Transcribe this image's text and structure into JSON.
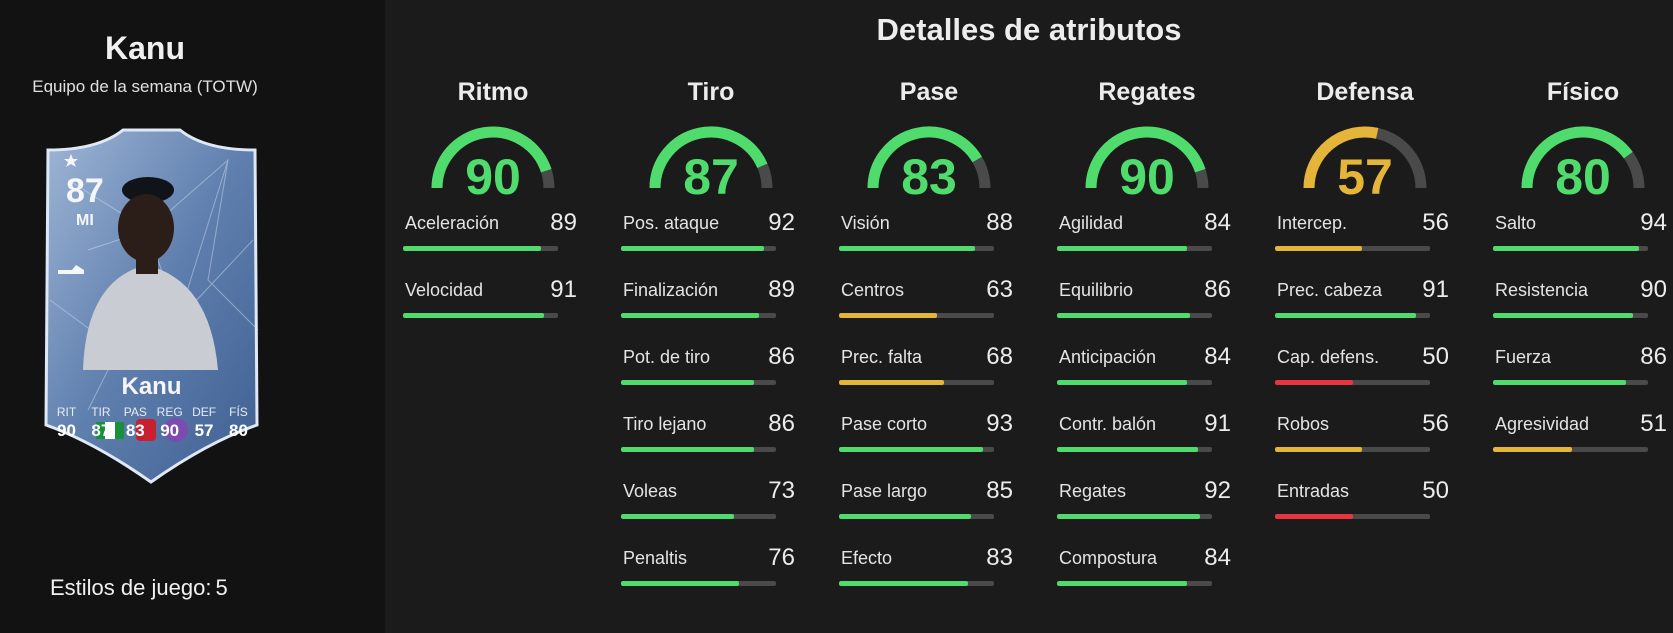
{
  "player": {
    "name": "Kanu",
    "subtitle": "Equipo de la semana (TOTW)",
    "playstyles_label": "Estilos de juego:",
    "playstyles_count": "5"
  },
  "card": {
    "rating": "87",
    "position": "MI",
    "name": "Kanu",
    "stats": [
      {
        "label": "RIT",
        "value": "90"
      },
      {
        "label": "TIR",
        "value": "87"
      },
      {
        "label": "PAS",
        "value": "83"
      },
      {
        "label": "REG",
        "value": "90"
      },
      {
        "label": "DEF",
        "value": "57"
      },
      {
        "label": "FÍS",
        "value": "80"
      }
    ]
  },
  "page_title": "Detalles de atributos",
  "colors": {
    "green": "#4fdc6c",
    "yellow": "#e5b53a",
    "red": "#e8343f",
    "track": "#4a4a4a"
  },
  "categories": [
    {
      "title": "Ritmo",
      "value": 90,
      "color": "green",
      "stats": [
        {
          "name": "Aceleración",
          "value": 89,
          "color": "green"
        },
        {
          "name": "Velocidad",
          "value": 91,
          "color": "green"
        }
      ]
    },
    {
      "title": "Tiro",
      "value": 87,
      "color": "green",
      "stats": [
        {
          "name": "Pos. ataque",
          "value": 92,
          "color": "green"
        },
        {
          "name": "Finalización",
          "value": 89,
          "color": "green"
        },
        {
          "name": "Pot. de tiro",
          "value": 86,
          "color": "green"
        },
        {
          "name": "Tiro lejano",
          "value": 86,
          "color": "green"
        },
        {
          "name": "Voleas",
          "value": 73,
          "color": "green"
        },
        {
          "name": "Penaltis",
          "value": 76,
          "color": "green"
        }
      ]
    },
    {
      "title": "Pase",
      "value": 83,
      "color": "green",
      "stats": [
        {
          "name": "Visión",
          "value": 88,
          "color": "green"
        },
        {
          "name": "Centros",
          "value": 63,
          "color": "yellow"
        },
        {
          "name": "Prec. falta",
          "value": 68,
          "color": "yellow"
        },
        {
          "name": "Pase corto",
          "value": 93,
          "color": "green"
        },
        {
          "name": "Pase largo",
          "value": 85,
          "color": "green"
        },
        {
          "name": "Efecto",
          "value": 83,
          "color": "green"
        }
      ]
    },
    {
      "title": "Regates",
      "value": 90,
      "color": "green",
      "stats": [
        {
          "name": "Agilidad",
          "value": 84,
          "color": "green"
        },
        {
          "name": "Equilibrio",
          "value": 86,
          "color": "green"
        },
        {
          "name": "Anticipación",
          "value": 84,
          "color": "green"
        },
        {
          "name": "Contr. balón",
          "value": 91,
          "color": "green"
        },
        {
          "name": "Regates",
          "value": 92,
          "color": "green"
        },
        {
          "name": "Compostura",
          "value": 84,
          "color": "green"
        }
      ]
    },
    {
      "title": "Defensa",
      "value": 57,
      "color": "yellow",
      "stats": [
        {
          "name": "Intercep.",
          "value": 56,
          "color": "yellow"
        },
        {
          "name": "Prec. cabeza",
          "value": 91,
          "color": "green"
        },
        {
          "name": "Cap. defens.",
          "value": 50,
          "color": "red"
        },
        {
          "name": "Robos",
          "value": 56,
          "color": "yellow"
        },
        {
          "name": "Entradas",
          "value": 50,
          "color": "red"
        }
      ]
    },
    {
      "title": "Físico",
      "value": 80,
      "color": "green",
      "stats": [
        {
          "name": "Salto",
          "value": 94,
          "color": "green"
        },
        {
          "name": "Resistencia",
          "value": 90,
          "color": "green"
        },
        {
          "name": "Fuerza",
          "value": 86,
          "color": "green"
        },
        {
          "name": "Agresividad",
          "value": 51,
          "color": "yellow"
        }
      ]
    }
  ]
}
